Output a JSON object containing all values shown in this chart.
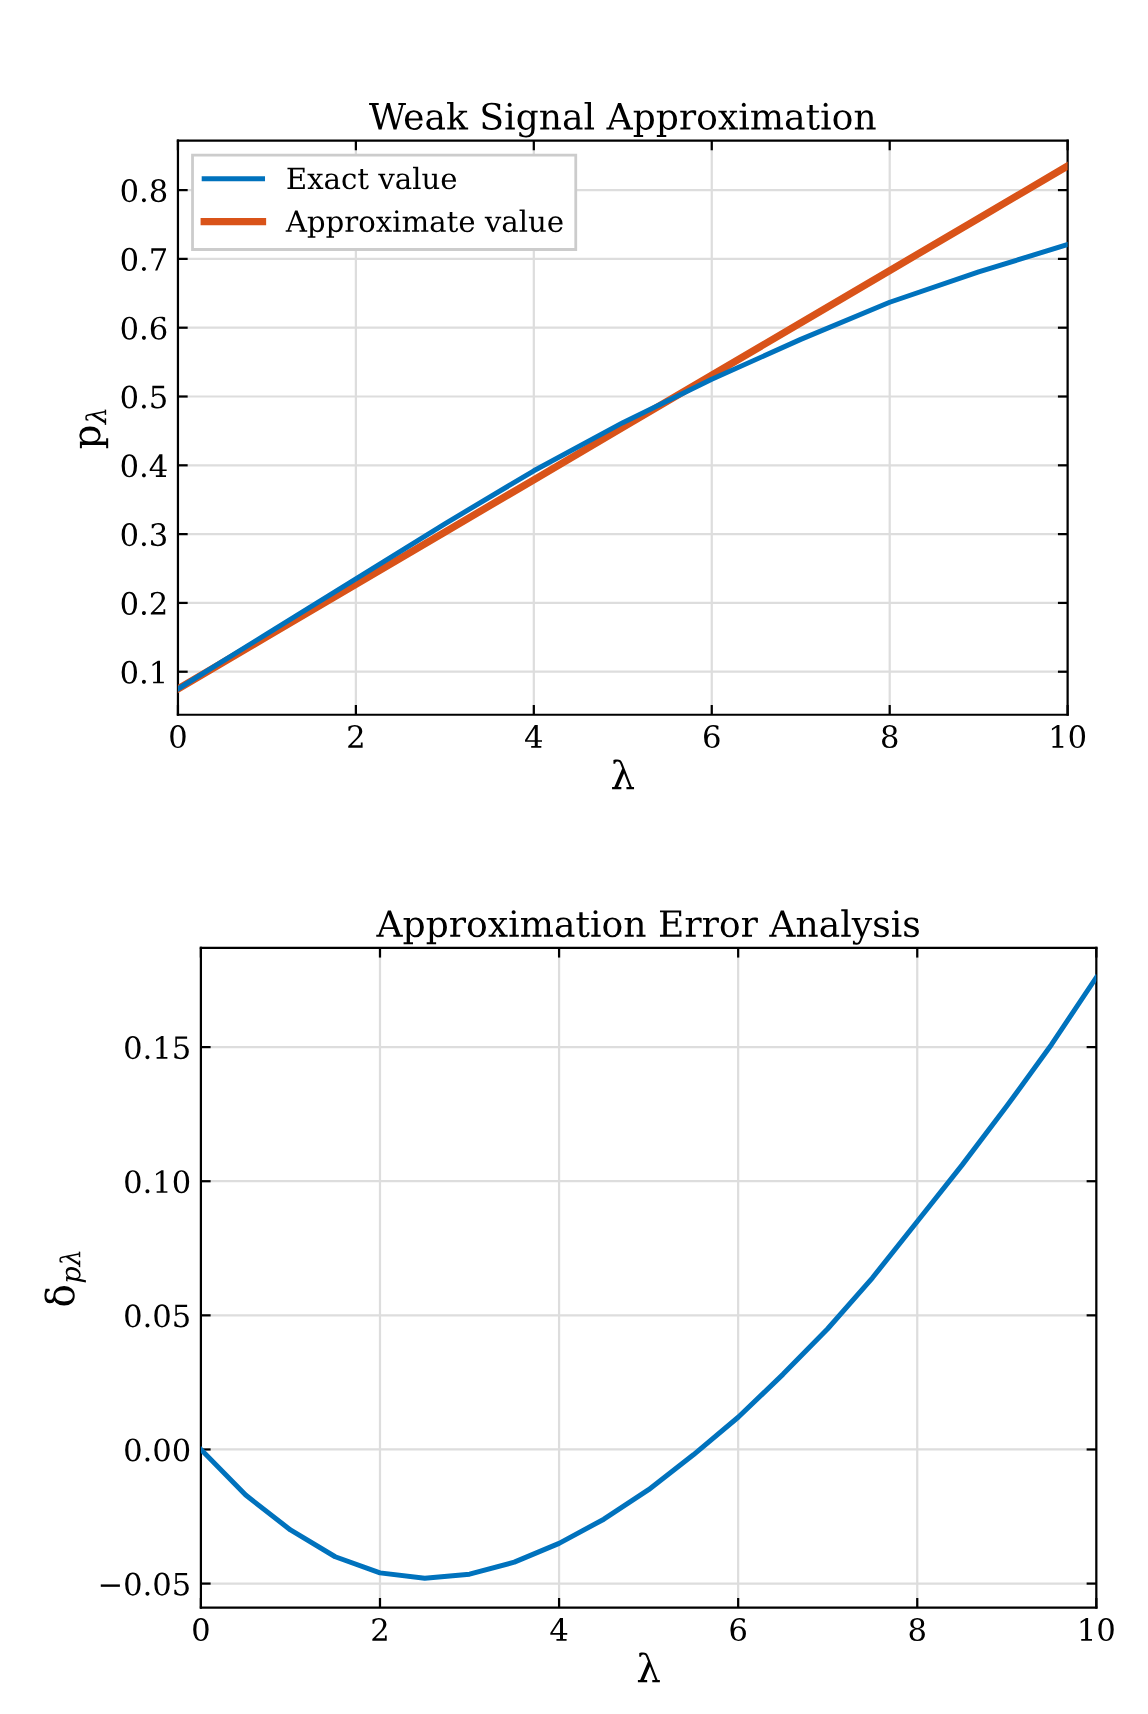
{
  "chart_data": [
    {
      "type": "line",
      "title": "Weak Signal Approximation",
      "xlabel": "λ",
      "ylabel": "p$_{λ}$",
      "x": [
        0,
        1,
        2,
        3,
        4,
        5,
        6,
        7,
        8,
        9,
        10
      ],
      "series": [
        {
          "name": "Exact value",
          "color": "#0072bd",
          "values": [
            0.075,
            0.155,
            0.235,
            0.315,
            0.392,
            0.462,
            0.525,
            0.583,
            0.637,
            0.681,
            0.721
          ]
        },
        {
          "name": "Approximate value",
          "color": "#d95319",
          "values": [
            0.075,
            0.151,
            0.227,
            0.303,
            0.379,
            0.455,
            0.531,
            0.607,
            0.683,
            0.759,
            0.835
          ]
        }
      ],
      "xlim": [
        0,
        10
      ],
      "xticks": [
        0,
        2,
        4,
        6,
        8,
        10
      ],
      "ylim": [
        0.0375,
        0.872
      ],
      "yticks": [
        0.1,
        0.2,
        0.3,
        0.4,
        0.5,
        0.6,
        0.7,
        0.8
      ],
      "grid": true,
      "legend": "top left",
      "marker": "none",
      "line_style": "solid"
    },
    {
      "type": "line",
      "title": "Approximation Error Analysis",
      "xlabel": "λ",
      "ylabel": "δ$_{pλ}$",
      "x": [
        0,
        0.5,
        1,
        1.5,
        2,
        2.5,
        3,
        3.5,
        4,
        4.5,
        5,
        5.5,
        6,
        6.5,
        7,
        7.5,
        8,
        8.5,
        9,
        9.5,
        10
      ],
      "series": [
        {
          "color": "#0072bd",
          "values": [
            0,
            -0.017,
            -0.03,
            -0.04,
            -0.046,
            -0.048,
            -0.0465,
            -0.042,
            -0.035,
            -0.026,
            -0.015,
            -0.002,
            0.012,
            0.028,
            0.045,
            0.064,
            0.085,
            0.106,
            0.128,
            0.151,
            0.176
          ]
        }
      ],
      "xlim": [
        0,
        10
      ],
      "xticks": [
        0,
        2,
        4,
        6,
        8,
        10
      ],
      "ylim": [
        -0.059,
        0.187
      ],
      "yticks": [
        {
          "value": -0.05,
          "label": "−0.05"
        },
        {
          "value": 0,
          "label": "0.00"
        },
        {
          "value": 0.05,
          "label": "0.05"
        },
        {
          "value": 0.1,
          "label": "0.10"
        },
        {
          "value": 0.15,
          "label": "0.15"
        }
      ],
      "grid": true,
      "marker": "none",
      "line_style": "solid"
    }
  ]
}
